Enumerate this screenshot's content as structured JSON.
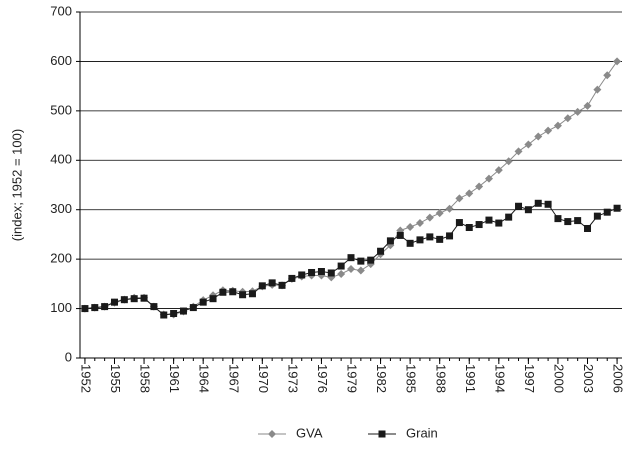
{
  "chart_data": {
    "type": "line",
    "y_label": "(index; 1952 = 100)",
    "x": [
      1952,
      1953,
      1954,
      1955,
      1956,
      1957,
      1958,
      1959,
      1960,
      1961,
      1962,
      1963,
      1964,
      1965,
      1966,
      1967,
      1968,
      1969,
      1970,
      1971,
      1972,
      1973,
      1974,
      1975,
      1976,
      1977,
      1978,
      1979,
      1980,
      1981,
      1982,
      1983,
      1984,
      1985,
      1986,
      1987,
      1988,
      1989,
      1990,
      1991,
      1992,
      1993,
      1994,
      1995,
      1996,
      1997,
      1998,
      1999,
      2000,
      2001,
      2002,
      2003,
      2004,
      2005,
      2006
    ],
    "series": [
      {
        "name": "GVA",
        "color": "#8a8a8a",
        "marker": "diamond",
        "values": [
          100,
          102,
          104,
          112,
          118,
          122,
          122,
          104,
          88,
          88,
          94,
          104,
          117,
          127,
          137,
          136,
          134,
          135,
          145,
          148,
          147,
          160,
          165,
          167,
          167,
          163,
          170,
          180,
          177,
          190,
          210,
          228,
          258,
          265,
          273,
          284,
          293,
          302,
          323,
          333,
          347,
          363,
          380,
          398,
          418,
          432,
          448,
          460,
          470,
          485,
          498,
          510,
          543,
          572,
          600
        ]
      },
      {
        "name": "Grain",
        "color": "#1a1a1a",
        "marker": "square",
        "values": [
          100,
          102,
          104,
          113,
          118,
          120,
          121,
          104,
          87,
          90,
          95,
          102,
          113,
          120,
          133,
          134,
          128,
          130,
          146,
          152,
          147,
          161,
          168,
          173,
          175,
          172,
          186,
          203,
          196,
          198,
          216,
          237,
          248,
          232,
          239,
          245,
          240,
          247,
          274,
          264,
          270,
          279,
          273,
          285,
          307,
          300,
          313,
          311,
          282,
          276,
          278,
          262,
          287,
          295,
          303
        ]
      }
    ],
    "xlim": [
      1951.5,
      2006.5
    ],
    "xticks": [
      1952,
      1955,
      1958,
      1961,
      1964,
      1967,
      1970,
      1973,
      1976,
      1979,
      1982,
      1985,
      1988,
      1991,
      1994,
      1997,
      2000,
      2003,
      2006
    ],
    "ylim": [
      0,
      700
    ],
    "yticks": [
      0,
      100,
      200,
      300,
      400,
      500,
      600,
      700
    ],
    "grid": true,
    "legend": "bottom"
  }
}
